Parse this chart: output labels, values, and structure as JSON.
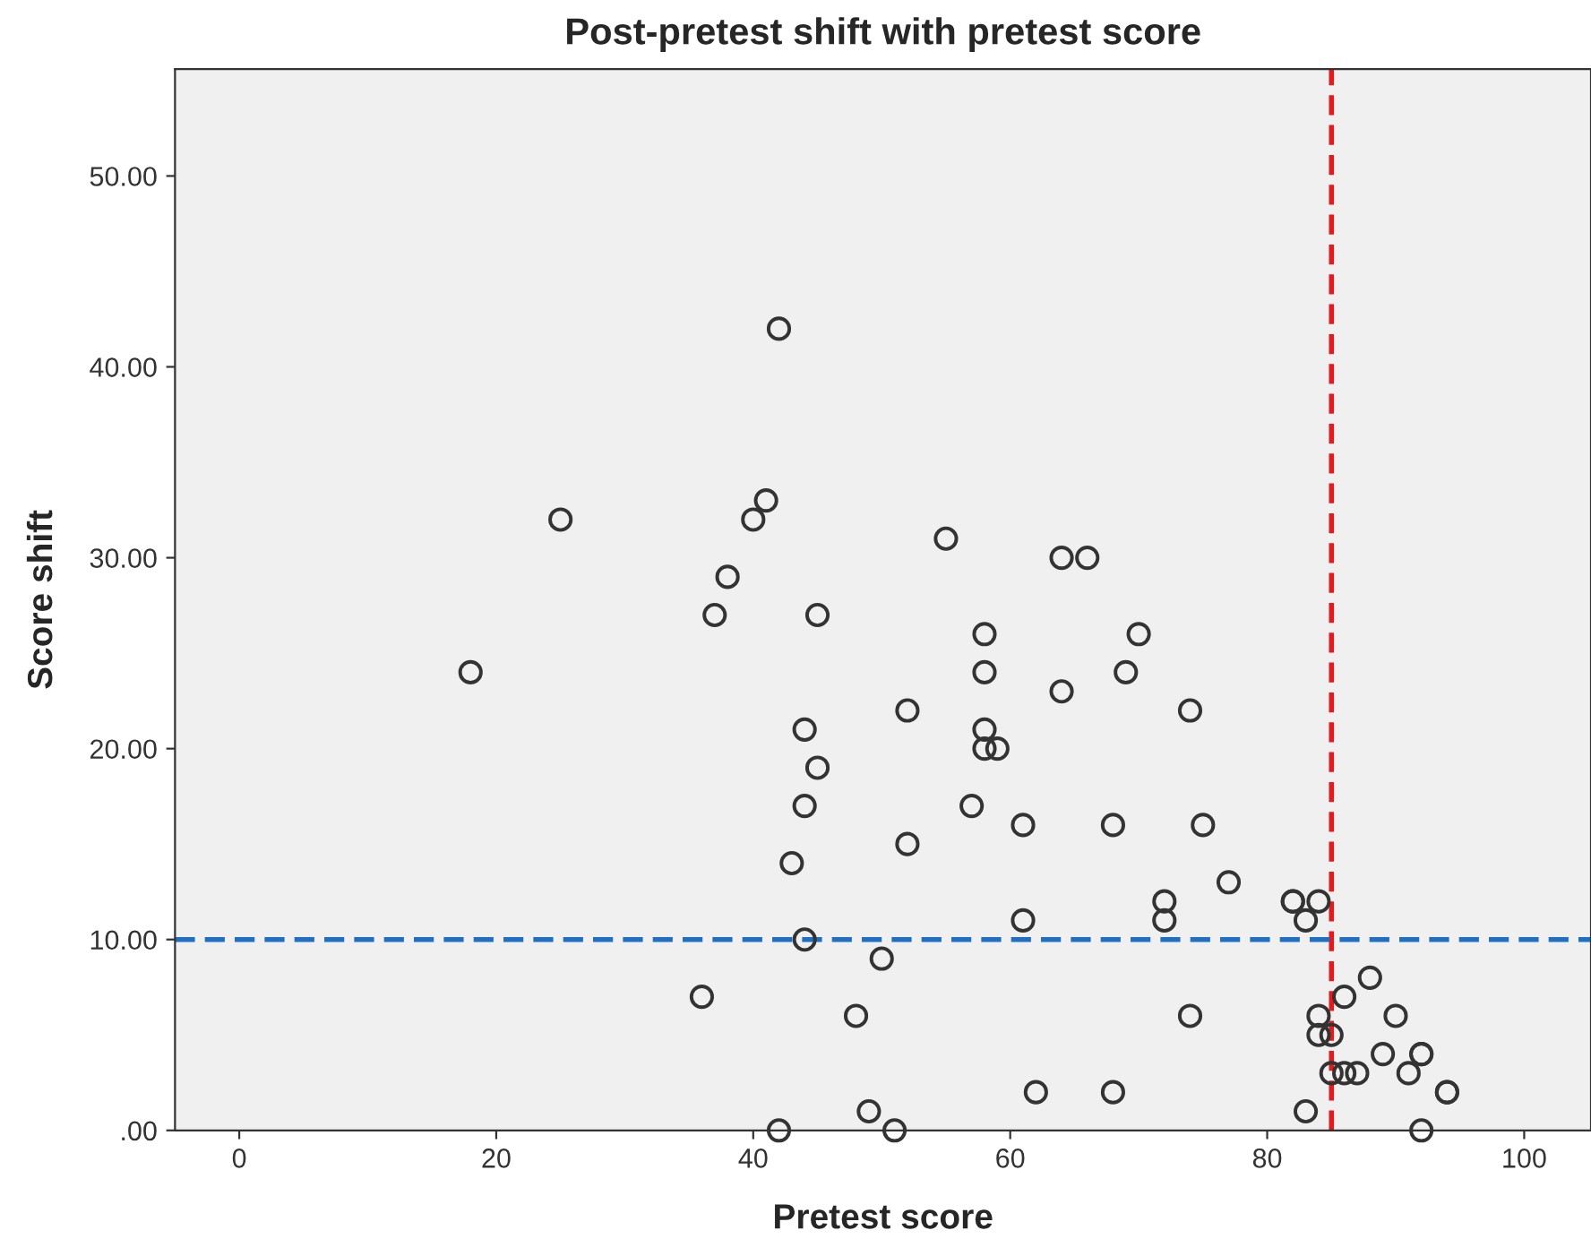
{
  "chart_data": {
    "type": "scatter",
    "title": "Post-pretest shift with pretest score",
    "xlabel": "Pretest score",
    "ylabel": "Score shift",
    "x": [
      18,
      25,
      36,
      37,
      38,
      40,
      41,
      42,
      42,
      43,
      44,
      44,
      44,
      45,
      45,
      48,
      49,
      50,
      51,
      52,
      52,
      55,
      57,
      58,
      58,
      58,
      58,
      59,
      61,
      61,
      62,
      64,
      64,
      66,
      68,
      68,
      69,
      70,
      72,
      72,
      74,
      74,
      75,
      77,
      82,
      82,
      83,
      83,
      84,
      84,
      84,
      85,
      85,
      86,
      86,
      87,
      88,
      89,
      90,
      91,
      92,
      92,
      92,
      94,
      94
    ],
    "series": [
      {
        "color": "#333333",
        "values": [
          24,
          32,
          7,
          27,
          29,
          32,
          33,
          42,
          0,
          14,
          21,
          17,
          10,
          27,
          19,
          6,
          1,
          9,
          0,
          22,
          15,
          31,
          17,
          26,
          24,
          21,
          20,
          20,
          16,
          11,
          2,
          30,
          23,
          30,
          16,
          2,
          24,
          26,
          12,
          11,
          22,
          6,
          16,
          13,
          12,
          12,
          11,
          1,
          12,
          6,
          5,
          5,
          3,
          7,
          3,
          3,
          8,
          4,
          6,
          3,
          4,
          4,
          0,
          2,
          2
        ]
      }
    ],
    "marker": "circle",
    "xlim": [
      -5,
      105.2
    ],
    "ylim": [
      0,
      55.6
    ],
    "xticks": [
      0,
      20,
      40,
      60,
      80,
      100
    ],
    "yticks": [
      {
        "value": 0,
        "label": ".00"
      },
      {
        "value": 10,
        "label": "10.00"
      },
      {
        "value": 20,
        "label": "20.00"
      },
      {
        "value": 30,
        "label": "30.00"
      },
      {
        "value": 40,
        "label": "40.00"
      },
      {
        "value": 50,
        "label": "50.00"
      }
    ],
    "ref_lines": [
      {
        "axis": "x",
        "value": 85,
        "color": "#e8191c",
        "line_style": "dashed"
      },
      {
        "axis": "y",
        "value": 10,
        "color": "#1f6fc4",
        "line_style": "dashed"
      }
    ],
    "grid": false,
    "legend": false
  }
}
